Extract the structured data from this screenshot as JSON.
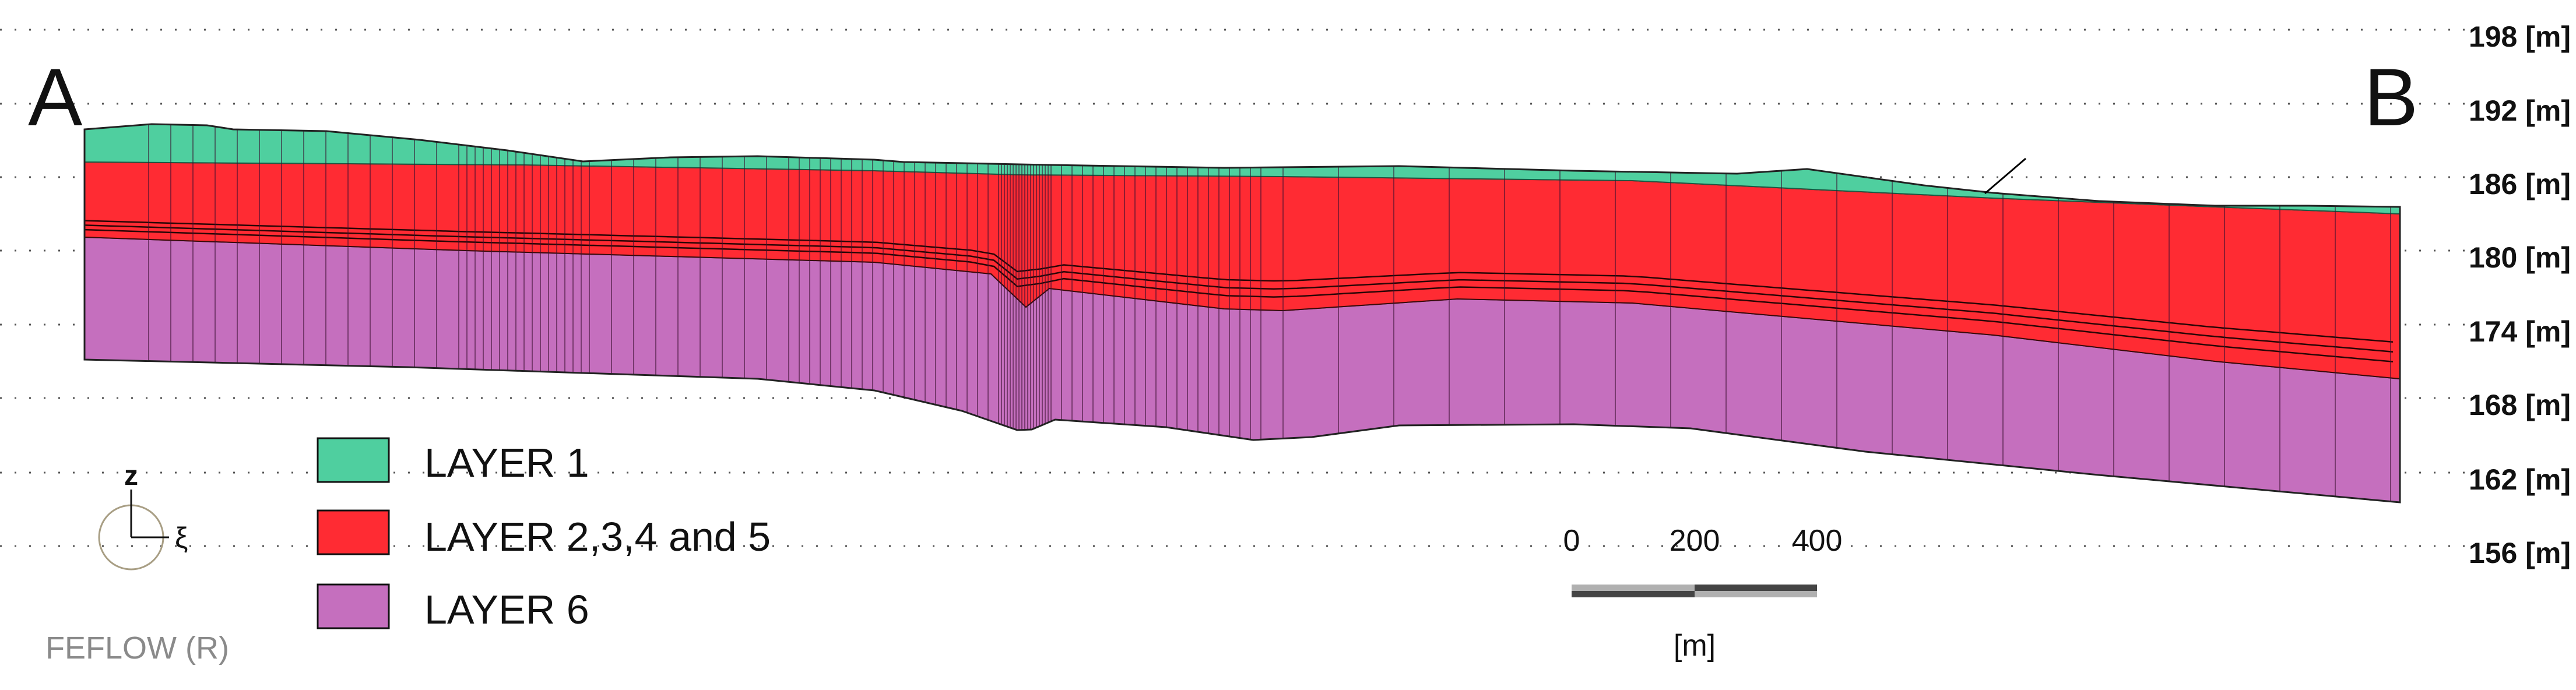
{
  "endpoints": {
    "left": "A",
    "right": "B"
  },
  "elevation_labels": [
    "198 [m]",
    "192 [m]",
    "186 [m]",
    "180 [m]",
    "174 [m]",
    "168 [m]",
    "162 [m]",
    "156 [m]"
  ],
  "elevations_m": [
    198,
    192,
    186,
    180,
    174,
    168,
    162,
    156
  ],
  "legend": [
    {
      "label": "LAYER 1",
      "color": "#4fcf9f"
    },
    {
      "label": "LAYER 2,3,4 and 5",
      "color": "#ff2b33"
    },
    {
      "label": "LAYER 6",
      "color": "#c56fbe"
    }
  ],
  "axis_icon": {
    "vertical": "z",
    "horizontal": "ξ"
  },
  "scale_bar": {
    "ticks": [
      "0",
      "200",
      "400"
    ],
    "unit": "[m]"
  },
  "software_label": "FEFLOW (R)"
}
